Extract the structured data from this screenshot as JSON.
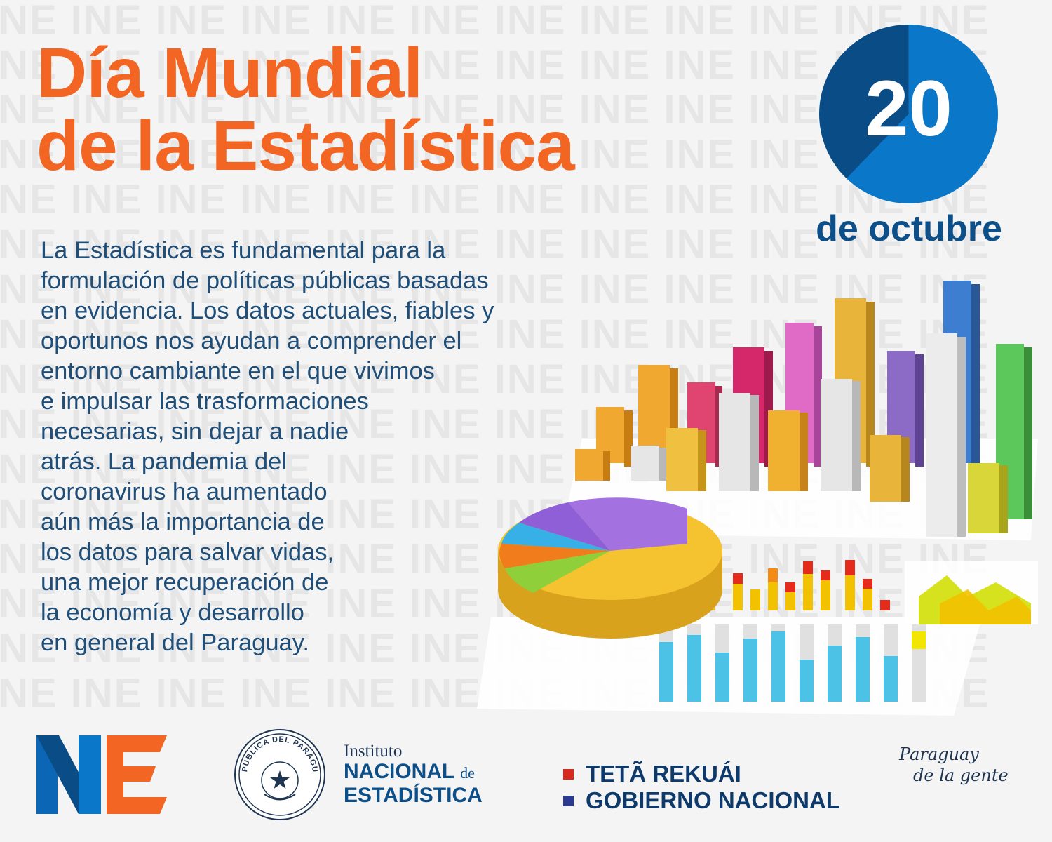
{
  "watermark_text": "INE INE INE INE INE INE INE INE INE INE INE INE",
  "title": {
    "line1": "Día Mundial",
    "line2": "de la Estadística"
  },
  "date": {
    "day": "20",
    "month": "de octubre"
  },
  "body_lines": [
    "La Estadística es fundamental para la",
    "formulación de políticas públicas basadas",
    "en evidencia. Los datos actuales, fiables y",
    "oportunos nos ayudan a comprender el",
    "entorno cambiante en el que vivimos",
    "e impulsar las trasformaciones",
    "necesarias, sin dejar a nadie",
    "atrás. La pandemia del",
    "coronavirus ha aumentado",
    "aún más la importancia de",
    "los datos para salvar vidas,",
    "una mejor recuperación de",
    "la economía y desarrollo",
    "en general del Paraguay."
  ],
  "footer": {
    "seal_text": "REPÚBLICA DEL PARAGUAY",
    "ine_line1": "Instituto",
    "ine_line2": "NACIONAL",
    "ine_de": "de",
    "ine_line3": "ESTADÍSTICA",
    "gov_line1": "TETÃ REKUÁI",
    "gov_line2": "GOBIERNO NACIONAL",
    "slogan_line1": "Paraguay",
    "slogan_line2": "de la gente"
  },
  "colors": {
    "title_orange": "#f26522",
    "dark_blue": "#0d4f88",
    "circle_blue": "#0b77c9",
    "circle_dark": "#0a4d86",
    "flag_red": "#d52b1e",
    "flag_blue": "#2b3a8f"
  }
}
